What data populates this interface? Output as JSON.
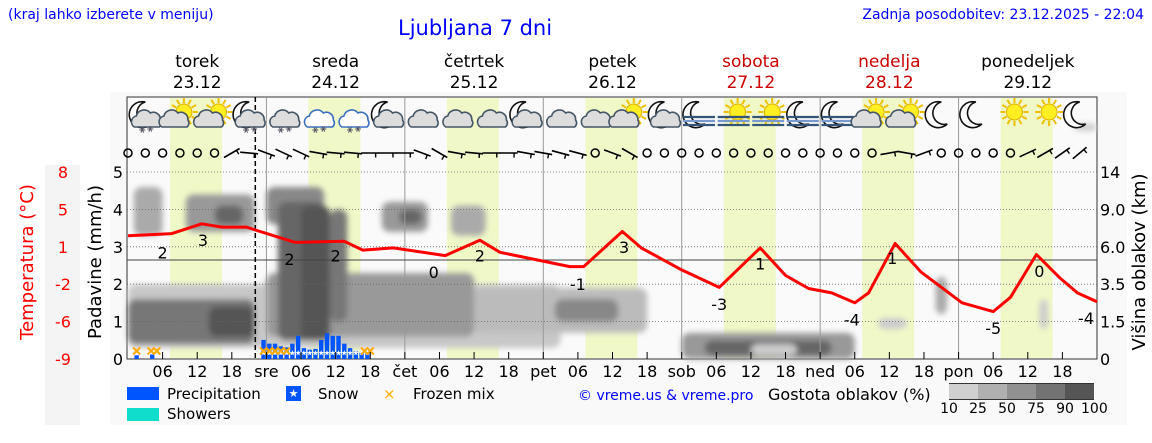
{
  "header": {
    "hint": "(kraj lahko izberete v meniju)",
    "title": "Ljubljana 7 dni",
    "updated": "Zadnja posodobitev: 23.12.2025 - 22:04"
  },
  "days": [
    {
      "name": "torek",
      "date": "23.12",
      "weekend": false
    },
    {
      "name": "sreda",
      "date": "24.12",
      "weekend": false
    },
    {
      "name": "četrtek",
      "date": "25.12",
      "weekend": false
    },
    {
      "name": "petek",
      "date": "26.12",
      "weekend": false
    },
    {
      "name": "sobota",
      "date": "27.12",
      "weekend": true
    },
    {
      "name": "nedelja",
      "date": "28.12",
      "weekend": true
    },
    {
      "name": "ponedeljek",
      "date": "29.12",
      "weekend": false
    }
  ],
  "colors": {
    "text_blue": "#0000ff",
    "temperature": "#ff0000",
    "weekend": "#cc0000",
    "daylight": "#f0f8c8",
    "precipitation": "#0055ff",
    "showers": "#11ddcc",
    "frozen_mix": "#ffaa00"
  },
  "icons": [
    "moon-cloud-snow",
    "sun-cloud",
    "sun-cloud",
    "moon-cloud-snow",
    "cloud-snow",
    "cloud-snow",
    "cloud-snow",
    "moon-cloud",
    "cloud",
    "cloud",
    "cloud",
    "moon-cloud",
    "cloud",
    "cloud",
    "sun-cloud",
    "moon-cloud",
    "moon-fog",
    "sun-fog",
    "sun-fog",
    "moon-fog",
    "moon-fog",
    "sun-cloud",
    "sun-cloud",
    "moon",
    "moon",
    "sun",
    "sun",
    "moon"
  ],
  "wind": [
    "calm",
    "calm",
    "calm",
    "calm",
    "calm",
    "calm",
    "barb:60",
    "barb:95",
    "barb:110",
    "barb:115",
    "barb:115",
    "barb:100",
    "barb:95",
    "barb:95",
    "barb:90",
    "barb:90",
    "barb:90",
    "barb:110",
    "barb:120",
    "barb:100",
    "barb:95",
    "barb:90",
    "barb:90",
    "barb:100",
    "barb:100",
    "barb:105",
    "barb:105",
    "calm",
    "barb:110",
    "barb:120",
    "calm",
    "calm",
    "calm",
    "calm",
    "calm",
    "calm",
    "calm",
    "calm",
    "calm",
    "calm",
    "calm",
    "calm",
    "calm",
    "calm",
    "barb:80",
    "barb:100",
    "barb:70",
    "calm",
    "calm",
    "calm",
    "calm",
    "calm",
    "barb:65",
    "barb:60",
    "barb:55",
    "barb:50"
  ],
  "chart_data": {
    "type": "line",
    "now_marker": "23.12 22:04",
    "x_unit": "hours from 23.12 00:00",
    "x_tick_labels": [
      "06",
      "12",
      "18",
      "sre",
      "06",
      "12",
      "18",
      "čet",
      "06",
      "12",
      "18",
      "pet",
      "06",
      "12",
      "18",
      "sob",
      "06",
      "12",
      "18",
      "ned",
      "06",
      "12",
      "18",
      "pon",
      "06",
      "12",
      "18"
    ],
    "y_left": {
      "label": "Padavine (mm/h)",
      "ticks": [
        0,
        1,
        2,
        3,
        4,
        5
      ],
      "range": [
        0,
        5.2
      ]
    },
    "y_temperature": {
      "label": "Temperatura (°C)",
      "ticks": [
        8,
        5,
        1,
        -2,
        -6,
        -9
      ]
    },
    "y_right": {
      "label": "Višina oblakov (km)",
      "ticks": [
        "0",
        "1.5",
        "3.5",
        "6.0",
        "9.0",
        "14"
      ]
    },
    "grid": true,
    "daylight_hours": [
      7.3,
      16.3
    ],
    "temperature": {
      "x": [
        0,
        7.6,
        12.8,
        16.3,
        20.5,
        29,
        37.5,
        40.7,
        46,
        55,
        61,
        64.5,
        76.6,
        79,
        85.7,
        89,
        96,
        102.5,
        109.6,
        114,
        118,
        122,
        126,
        128.4,
        133,
        137.5,
        144.6,
        150,
        153,
        157.5,
        161.5,
        164.6,
        168
      ],
      "y": [
        2.2,
        2.4,
        3.3,
        3.0,
        3.0,
        1.6,
        1.7,
        0.9,
        1.1,
        0.4,
        1.8,
        0.7,
        -0.6,
        -0.6,
        2.6,
        1.1,
        -0.9,
        -2.5,
        1.1,
        -1.4,
        -2.6,
        -3.0,
        -3.9,
        -3.0,
        1.5,
        -1.1,
        -3.9,
        -4.7,
        -3.4,
        0.5,
        -1.6,
        -3.0,
        -3.8
      ]
    },
    "temperature_labels": [
      {
        "x": 6,
        "text": "2",
        "t": 0.7
      },
      {
        "x": 13,
        "text": "3",
        "t": 1.8
      },
      {
        "x": 28,
        "text": "2",
        "t": 0.1
      },
      {
        "x": 36,
        "text": "2",
        "t": 0.4
      },
      {
        "x": 53,
        "text": "0",
        "t": -1.1
      },
      {
        "x": 61,
        "text": "2",
        "t": 0.4
      },
      {
        "x": 78,
        "text": "-1",
        "t": -2.2
      },
      {
        "x": 86,
        "text": "3",
        "t": 1.2
      },
      {
        "x": 102.5,
        "text": "-3",
        "t": -4.0
      },
      {
        "x": 109.6,
        "text": "1",
        "t": -0.3
      },
      {
        "x": 125.5,
        "text": "-4",
        "t": -5.4
      },
      {
        "x": 132.5,
        "text": "1",
        "t": 0.2
      },
      {
        "x": 150,
        "text": "-5",
        "t": -6.2
      },
      {
        "x": 158,
        "text": "0",
        "t": -1.0
      },
      {
        "x": 167.5,
        "text": "-4",
        "t": -5.3
      }
    ],
    "precipitation": {
      "x": [
        1.5,
        4.2,
        23.5,
        24.5,
        25.5,
        26.5,
        27.5,
        28.5,
        29.5,
        30.5,
        31.5,
        32.5,
        33.5,
        34.5,
        35.5,
        36.5,
        37.5,
        38.5,
        39.5,
        40.5,
        41.5
      ],
      "y": [
        0.1,
        0.12,
        0.51,
        0.41,
        0.41,
        0.34,
        0.31,
        0.41,
        0.62,
        0.29,
        0.25,
        0.27,
        0.51,
        0.69,
        0.62,
        0.62,
        0.41,
        0.29,
        0.2,
        0.18,
        0.14
      ]
    },
    "snow_x": [
      23.5,
      24.5,
      25.5,
      26.5,
      27.5,
      28.5,
      29.5,
      30.5,
      31.5,
      32.5,
      33.5,
      34.5,
      35.5,
      36.5,
      37.5,
      38.5,
      39.5,
      40.5,
      41.5
    ],
    "frozen_mix_x": [
      1.5,
      4,
      5,
      23.5,
      24.5,
      25.5,
      26.5,
      27.5,
      41,
      42
    ],
    "legend": {
      "precipitation": "Precipitation",
      "snow": "Snow",
      "frozen_mix": "Frozen mix",
      "showers": "Showers",
      "credit": "© vreme.us & vreme.pro",
      "cloud_density": "Gostota oblakov (%)",
      "density_steps": [
        {
          "label": "10",
          "color": "#d0d0d0"
        },
        {
          "label": "25",
          "color": "#b0b0b0"
        },
        {
          "label": "50",
          "color": "#919191"
        },
        {
          "label": "75",
          "color": "#737373"
        },
        {
          "label": "90",
          "color": "#555555"
        },
        {
          "label": "100",
          "color": ""
        }
      ]
    }
  }
}
